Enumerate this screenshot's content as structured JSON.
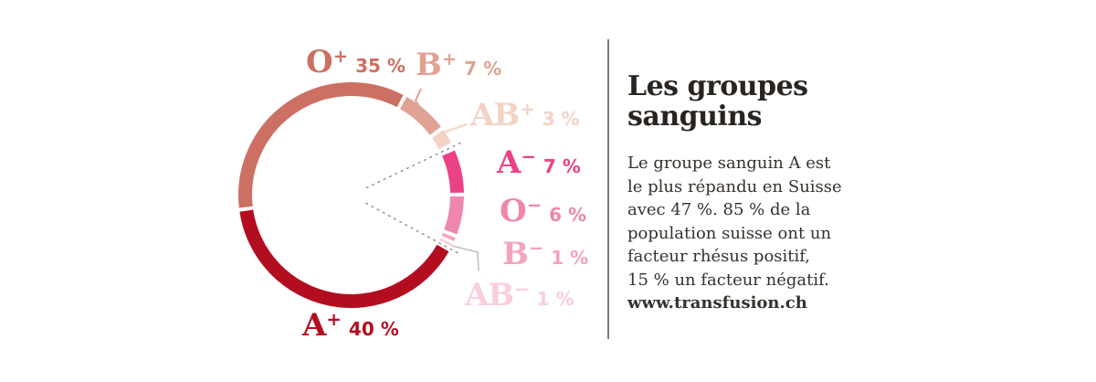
{
  "chart_data": {
    "type": "pie",
    "variant": "donut-ring",
    "total": 100,
    "legend_position": "around",
    "start_bearing_deg": -97.5,
    "boundary_gaps_deg": [
      2,
      2,
      4.4,
      2,
      2,
      1.6,
      3,
      2
    ],
    "rhesus_divider_bearings_deg": [
      64.5,
      118.5
    ],
    "segments": [
      {
        "name": "o-positive",
        "group": "O",
        "sign": "+",
        "value": 35,
        "pct_label": "35 %",
        "color": "#cd7064"
      },
      {
        "name": "b-positive",
        "group": "B",
        "sign": "+",
        "value": 7,
        "pct_label": "7 %",
        "color": "#dfa294"
      },
      {
        "name": "ab-positive",
        "group": "AB",
        "sign": "+",
        "value": 3,
        "pct_label": "3 %",
        "color": "#f3d3c6"
      },
      {
        "name": "a-negative",
        "group": "A",
        "sign": "−",
        "value": 7,
        "pct_label": "7 %",
        "color": "#ea4285"
      },
      {
        "name": "o-negative",
        "group": "O",
        "sign": "−",
        "value": 6,
        "pct_label": "6 %",
        "color": "#ee87ad"
      },
      {
        "name": "b-negative",
        "group": "B",
        "sign": "−",
        "value": 1,
        "pct_label": "1 %",
        "color": "#f4a3c0"
      },
      {
        "name": "ab-negative",
        "group": "AB",
        "sign": "−",
        "value": 1,
        "pct_label": "1 %",
        "color": "#f9cfdc"
      },
      {
        "name": "a-positive",
        "group": "A",
        "sign": "+",
        "value": 40,
        "pct_label": "40 %",
        "color": "#b30e20"
      }
    ]
  },
  "panel": {
    "title_line1": "Les groupes",
    "title_line2": "sanguins",
    "body_lines": [
      "Le groupe sanguin A est",
      "le plus répandu en Suisse",
      "avec 47 %. 85 % de la",
      "population suisse ont un",
      "facteur rhésus positif,",
      "15 % un facteur négatif."
    ],
    "link": "www.transfusion.ch"
  },
  "colors": {
    "background": "#ffffff",
    "divider": "#7c7c7c",
    "dashed_line": "#8f8f8f",
    "connector_gray": "#c2c2c2",
    "title_text": "#29241f",
    "body_text": "#36312c"
  }
}
